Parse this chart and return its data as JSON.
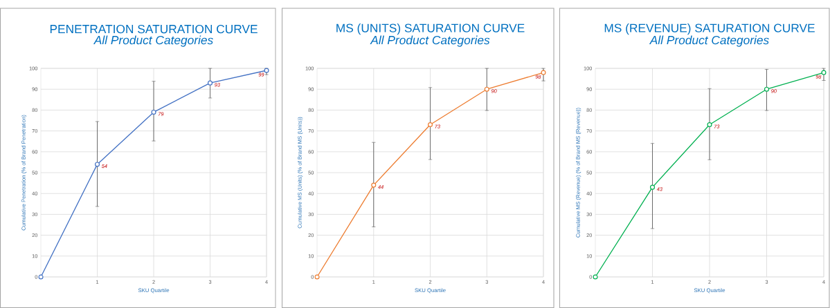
{
  "chart_data": [
    {
      "type": "line",
      "title": "PENETRATION SATURATION CURVE",
      "subtitle": "All Product Categories",
      "xlabel": "SKU Quartile",
      "ylabel": "Cumulative Penetration (% of Brand Penetration)",
      "x": [
        0,
        1,
        2,
        3,
        4
      ],
      "values": [
        0,
        54,
        79,
        93,
        99
      ],
      "errors": [
        null,
        [
          33.8,
          74.5
        ],
        [
          65.2,
          93.8
        ],
        [
          85.8,
          100
        ],
        [
          97,
          100
        ]
      ],
      "value_labels": [
        null,
        "54",
        "79",
        "93",
        "99"
      ],
      "color": "#4472c4",
      "xlim": [
        0,
        4
      ],
      "ylim": [
        0,
        100
      ],
      "xticks": [
        1,
        2,
        3,
        4
      ],
      "yticks": [
        0,
        10,
        20,
        30,
        40,
        50,
        60,
        70,
        80,
        90,
        100
      ],
      "grid": true,
      "marker": "circle",
      "line_style": "solid"
    },
    {
      "type": "line",
      "title": "MS (UNITS) SATURATION CURVE",
      "subtitle": "All Product Categories",
      "xlabel": "SKU Quartile",
      "ylabel": "Cumulative MS (Units) (% of Brand MS (Units))",
      "x": [
        0,
        1,
        2,
        3,
        4
      ],
      "values": [
        0,
        44,
        73,
        90,
        98
      ],
      "errors": [
        null,
        [
          24,
          64.5
        ],
        [
          56.3,
          90.8
        ],
        [
          79.8,
          100
        ],
        [
          94,
          100
        ]
      ],
      "value_labels": [
        null,
        "44",
        "73",
        "90",
        "98"
      ],
      "color": "#ed7d31",
      "xlim": [
        0,
        4
      ],
      "ylim": [
        0,
        100
      ],
      "xticks": [
        1,
        2,
        3,
        4
      ],
      "yticks": [
        0,
        10,
        20,
        30,
        40,
        50,
        60,
        70,
        80,
        90,
        100
      ],
      "grid": true,
      "marker": "circle",
      "line_style": "solid"
    },
    {
      "type": "line",
      "title": "MS (REVENUE) SATURATION CURVE",
      "subtitle": "All Product Categories",
      "xlabel": "SKU Quartile",
      "ylabel": "Cumulative MS (Revenue) (% of Brand MS (Revenue))",
      "x": [
        0,
        1,
        2,
        3,
        4
      ],
      "values": [
        0,
        43,
        73,
        90,
        98
      ],
      "errors": [
        null,
        [
          23.2,
          64
        ],
        [
          56.2,
          90.3
        ],
        [
          79.8,
          99.5
        ],
        [
          94.2,
          100
        ]
      ],
      "value_labels": [
        null,
        "43",
        "73",
        "90",
        "98"
      ],
      "color": "#00b050",
      "xlim": [
        0,
        4
      ],
      "ylim": [
        0,
        100
      ],
      "xticks": [
        1,
        2,
        3,
        4
      ],
      "yticks": [
        0,
        10,
        20,
        30,
        40,
        50,
        60,
        70,
        80,
        90,
        100
      ],
      "grid": true,
      "marker": "circle",
      "line_style": "solid"
    }
  ]
}
